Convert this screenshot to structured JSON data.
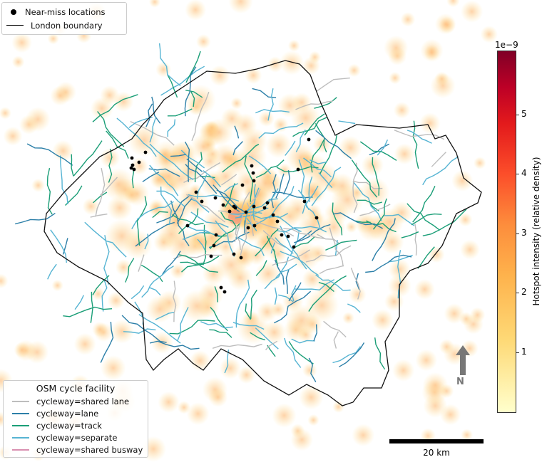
{
  "map": {
    "legend_top": {
      "items": [
        {
          "label": "Near-miss locations",
          "symbol": "dot",
          "color": "#000000"
        },
        {
          "label": "London boundary",
          "symbol": "line",
          "color": "#000000"
        }
      ]
    },
    "legend_facility": {
      "title": "OSM cycle facility",
      "items": [
        {
          "label": "cycleway=shared lane",
          "color": "#bdbdbd"
        },
        {
          "label": "cycleway=lane",
          "color": "#2c7fa8"
        },
        {
          "label": "cycleway=track",
          "color": "#1a9e77"
        },
        {
          "label": "cycleway=separate",
          "color": "#56b4d3"
        },
        {
          "label": "cycleway=shared busway",
          "color": "#d98fb0"
        }
      ]
    },
    "colorbar": {
      "title": "Hotspot intensity (relative density)",
      "exponent_label": "1e−9",
      "colormap": "YlOrRd",
      "range": [
        0,
        6
      ],
      "ticks": [
        "1",
        "2",
        "3",
        "4",
        "5"
      ]
    },
    "scale_bar": {
      "label": "20 km"
    },
    "north_arrow": {
      "label": "N",
      "color": "#777777"
    }
  }
}
